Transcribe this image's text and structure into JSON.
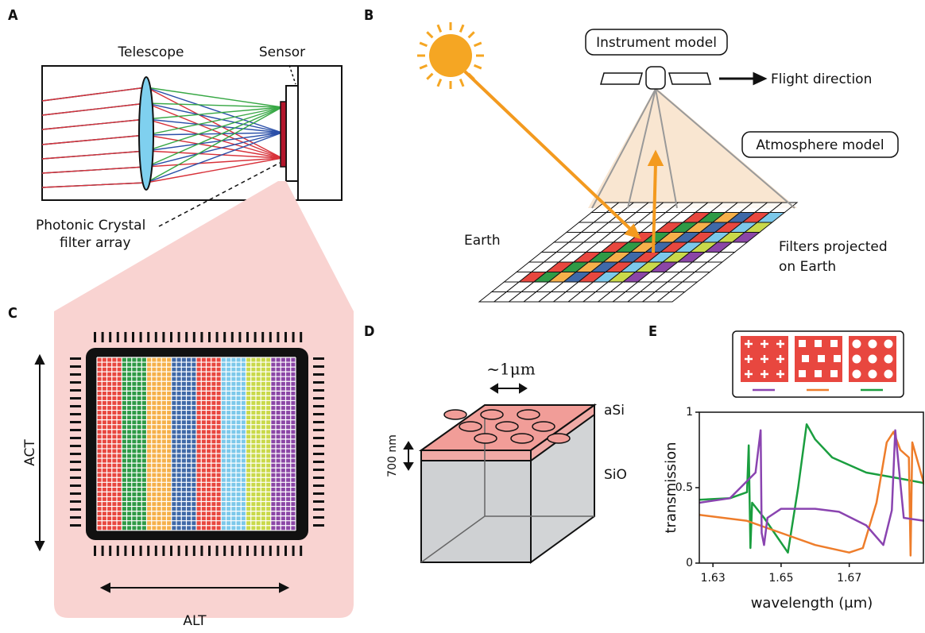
{
  "panels": {
    "a": {
      "label": "A",
      "telescope": "Telescope",
      "sensor": "Sensor",
      "filter_label": [
        "Photonic Crystal",
        "filter array"
      ]
    },
    "b": {
      "label": "B",
      "instrument": "Instrument model",
      "flight": "Flight direction",
      "atmosphere": "Atmosphere model",
      "earth": "Earth",
      "filters": [
        "Filters projected",
        "on Earth"
      ]
    },
    "c": {
      "label": "C",
      "act": "ACT",
      "alt": "ALT"
    },
    "d": {
      "label": "D",
      "period": "~1μm",
      "top_layer": "aSi",
      "thickness": "700 nm",
      "substrate": "SiO"
    },
    "e": {
      "label": "E"
    }
  },
  "chart_data": {
    "type": "line",
    "xlabel": "wavelength (μm)",
    "ylabel": "transmission",
    "xlim": [
      1.626,
      1.692
    ],
    "ylim": [
      0,
      1
    ],
    "xticks": [
      1.63,
      1.65,
      1.67
    ],
    "yticks": [
      0,
      0.5,
      1
    ],
    "series": [
      {
        "color": "#1a9e3f",
        "x": [
          1.626,
          1.635,
          1.64,
          1.6405,
          1.641,
          1.6415,
          1.645,
          1.652,
          1.655,
          1.6575,
          1.66,
          1.665,
          1.675,
          1.685,
          1.692
        ],
        "values": [
          0.42,
          0.43,
          0.47,
          0.78,
          0.1,
          0.4,
          0.3,
          0.07,
          0.5,
          0.92,
          0.82,
          0.7,
          0.6,
          0.56,
          0.53
        ]
      },
      {
        "color": "#ee7d2b",
        "x": [
          1.626,
          1.64,
          1.65,
          1.66,
          1.67,
          1.674,
          1.678,
          1.681,
          1.683,
          1.685,
          1.6875,
          1.688,
          1.6885,
          1.692
        ],
        "values": [
          0.32,
          0.28,
          0.2,
          0.12,
          0.07,
          0.1,
          0.4,
          0.8,
          0.87,
          0.75,
          0.7,
          0.05,
          0.8,
          0.52
        ]
      },
      {
        "color": "#8a44b0",
        "x": [
          1.626,
          1.635,
          1.6425,
          1.644,
          1.6443,
          1.645,
          1.646,
          1.65,
          1.66,
          1.667,
          1.675,
          1.68,
          1.6825,
          1.6835,
          1.686,
          1.692
        ],
        "values": [
          0.4,
          0.43,
          0.6,
          0.88,
          0.2,
          0.12,
          0.3,
          0.36,
          0.36,
          0.34,
          0.25,
          0.12,
          0.35,
          0.88,
          0.3,
          0.28
        ]
      }
    ]
  }
}
